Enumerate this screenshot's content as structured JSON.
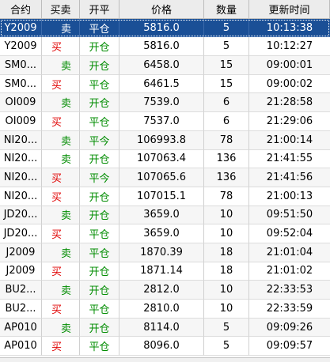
{
  "columns": [
    "合约",
    "买卖",
    "开平",
    "价格",
    "数量",
    "更新时间"
  ],
  "rows": [
    {
      "contract": "Y2009",
      "side": "卖",
      "side_type": "sell",
      "oc": "平仓",
      "price": "5816.0",
      "qty": "5",
      "time": "10:13:38",
      "selected": true
    },
    {
      "contract": "Y2009",
      "side": "买",
      "side_type": "buy",
      "oc": "开仓",
      "price": "5816.0",
      "qty": "5",
      "time": "10:12:27"
    },
    {
      "contract": "SM0...",
      "side": "卖",
      "side_type": "sell",
      "oc": "开仓",
      "price": "6458.0",
      "qty": "15",
      "time": "09:00:01"
    },
    {
      "contract": "SM0...",
      "side": "买",
      "side_type": "buy",
      "oc": "平仓",
      "price": "6461.5",
      "qty": "15",
      "time": "09:00:02"
    },
    {
      "contract": "OI009",
      "side": "卖",
      "side_type": "sell",
      "oc": "开仓",
      "price": "7539.0",
      "qty": "6",
      "time": "21:28:58"
    },
    {
      "contract": "OI009",
      "side": "买",
      "side_type": "buy",
      "oc": "平仓",
      "price": "7537.0",
      "qty": "6",
      "time": "21:29:06"
    },
    {
      "contract": "NI20...",
      "side": "卖",
      "side_type": "sell",
      "oc": "平今",
      "price": "106993.8",
      "qty": "78",
      "time": "21:00:14"
    },
    {
      "contract": "NI20...",
      "side": "卖",
      "side_type": "sell",
      "oc": "开仓",
      "price": "107063.4",
      "qty": "136",
      "time": "21:41:55"
    },
    {
      "contract": "NI20...",
      "side": "买",
      "side_type": "buy",
      "oc": "平今",
      "price": "107065.6",
      "qty": "136",
      "time": "21:41:56"
    },
    {
      "contract": "NI20...",
      "side": "买",
      "side_type": "buy",
      "oc": "开仓",
      "price": "107015.1",
      "qty": "78",
      "time": "21:00:13"
    },
    {
      "contract": "JD20...",
      "side": "卖",
      "side_type": "sell",
      "oc": "开仓",
      "price": "3659.0",
      "qty": "10",
      "time": "09:51:50"
    },
    {
      "contract": "JD20...",
      "side": "买",
      "side_type": "buy",
      "oc": "平仓",
      "price": "3659.0",
      "qty": "10",
      "time": "09:52:04"
    },
    {
      "contract": "J2009",
      "side": "卖",
      "side_type": "sell",
      "oc": "平仓",
      "price": "1870.39",
      "qty": "18",
      "time": "21:01:04"
    },
    {
      "contract": "J2009",
      "side": "买",
      "side_type": "buy",
      "oc": "开仓",
      "price": "1871.14",
      "qty": "18",
      "time": "21:01:02"
    },
    {
      "contract": "BU2...",
      "side": "卖",
      "side_type": "sell",
      "oc": "开仓",
      "price": "2812.0",
      "qty": "10",
      "time": "22:33:53"
    },
    {
      "contract": "BU2...",
      "side": "买",
      "side_type": "buy",
      "oc": "平仓",
      "price": "2810.0",
      "qty": "10",
      "time": "22:33:59"
    },
    {
      "contract": "AP010",
      "side": "卖",
      "side_type": "sell",
      "oc": "开仓",
      "price": "8114.0",
      "qty": "5",
      "time": "09:09:26"
    },
    {
      "contract": "AP010",
      "side": "买",
      "side_type": "buy",
      "oc": "平仓",
      "price": "8096.0",
      "qty": "5",
      "time": "09:09:57"
    }
  ],
  "colors": {
    "buy": "#e00000",
    "sell": "#008c00",
    "selected_bg": "#1a4f96"
  }
}
